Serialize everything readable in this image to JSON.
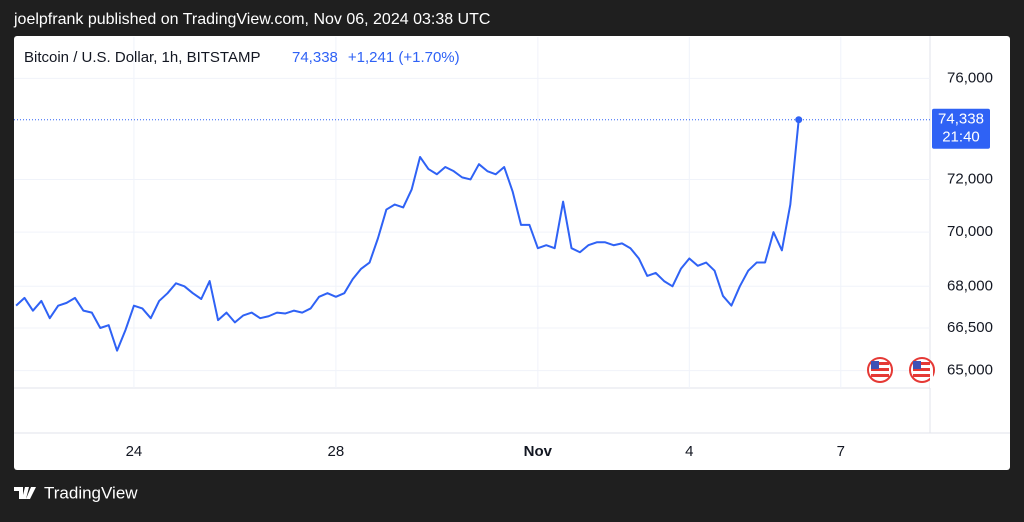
{
  "page": {
    "publisher_line": "joelpfrank published on TradingView.com, Nov 06, 2024 03:38 UTC",
    "brand": "TradingView"
  },
  "chart_data": {
    "type": "line",
    "title": "Bitcoin / U.S. Dollar, 1h, BITSTAMP",
    "last_price": "74,338",
    "change": "+1,241 (+1.70%)",
    "countdown": "21:40",
    "color": "#2f62f5",
    "log_scale": true,
    "grid": true,
    "values": [
      67300,
      67580,
      67120,
      67470,
      66850,
      67300,
      67400,
      67580,
      67120,
      67050,
      66500,
      66600,
      65700,
      66430,
      67300,
      67200,
      66850,
      67470,
      67750,
      68110,
      68000,
      67750,
      67540,
      68190,
      66780,
      67050,
      66700,
      66950,
      67050,
      66850,
      66920,
      67050,
      67020,
      67120,
      67050,
      67200,
      67620,
      67750,
      67620,
      67750,
      68260,
      68640,
      68870,
      69770,
      70850,
      71040,
      70930,
      71610,
      72870,
      72400,
      72200,
      72480,
      72320,
      72080,
      72000,
      72590,
      72320,
      72200,
      72480,
      71540,
      70270,
      70270,
      69400,
      69510,
      69400,
      71150,
      69400,
      69250,
      69510,
      69620,
      69620,
      69510,
      69580,
      69400,
      69020,
      68380,
      68490,
      68190,
      68000,
      68640,
      69020,
      68750,
      68870,
      68570,
      67650,
      67300,
      68000,
      68570,
      68870,
      68870,
      70000,
      69320,
      71040,
      74338
    ],
    "xlim": [
      -0.25,
      108.6
    ],
    "xticks": [
      {
        "value": 14,
        "label": "24"
      },
      {
        "value": 38,
        "label": "28"
      },
      {
        "value": 62,
        "label": "Nov"
      },
      {
        "value": 80,
        "label": "4"
      },
      {
        "value": 98,
        "label": "7"
      }
    ],
    "ylim": [
      64400,
      77700
    ],
    "yticks": [
      {
        "value": 65000,
        "label": "65,000"
      },
      {
        "value": 66500,
        "label": "66,500"
      },
      {
        "value": 68000,
        "label": "68,000"
      },
      {
        "value": 70000,
        "label": "70,000"
      },
      {
        "value": 72000,
        "label": "72,000"
      },
      {
        "value": 76000,
        "label": "76,000"
      }
    ]
  }
}
